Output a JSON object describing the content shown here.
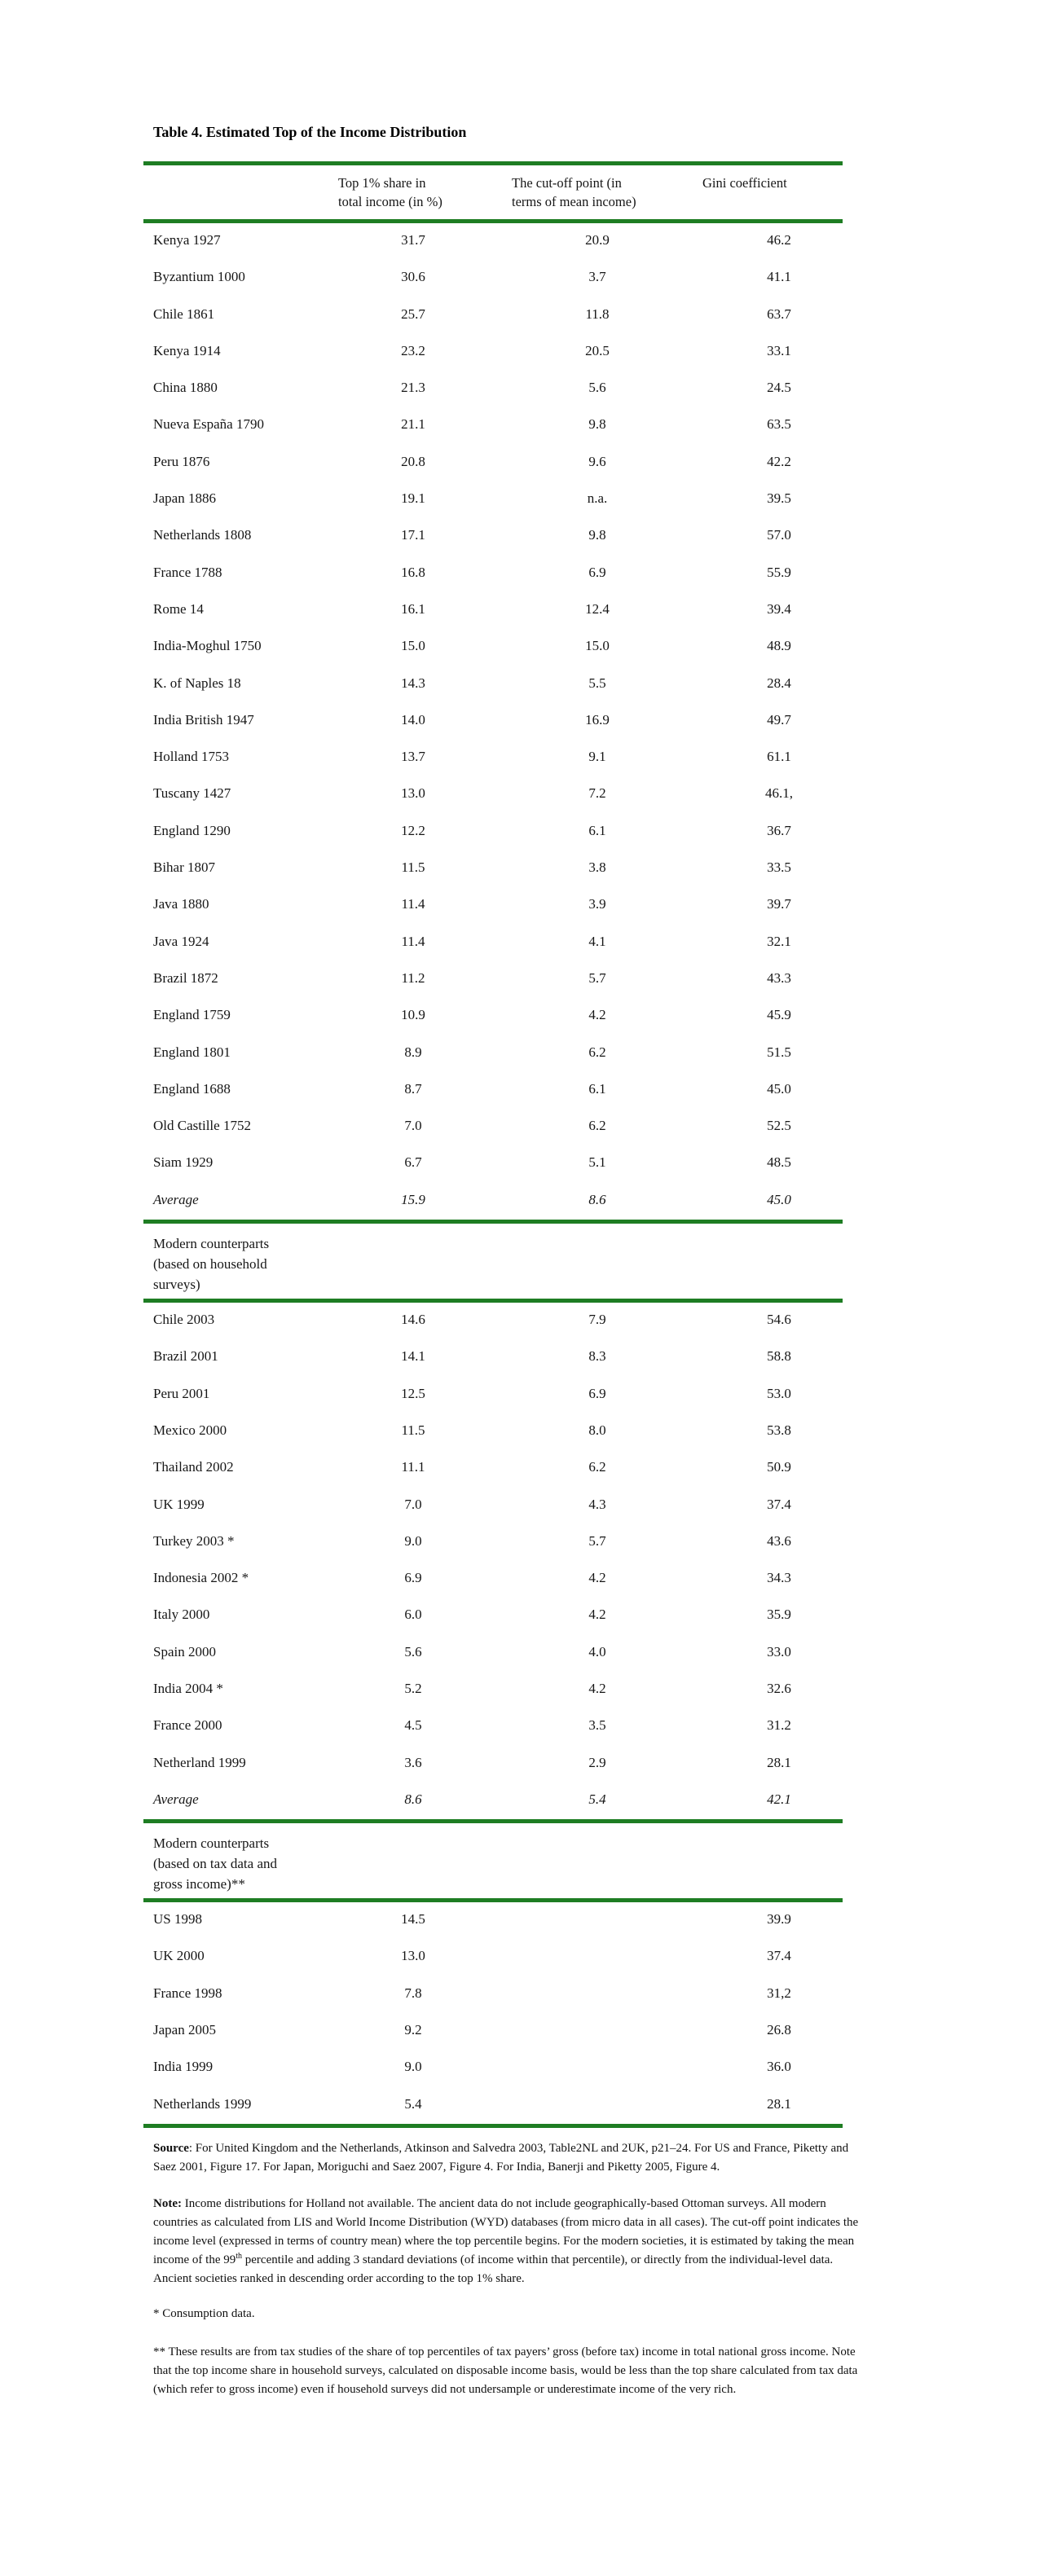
{
  "title": "Table 4. Estimated Top of the Income Distribution",
  "colors": {
    "rule_green": "#1e7d23",
    "text": "#161616"
  },
  "table": {
    "columns": [
      "",
      "Top 1% share in\ntotal income (in %)",
      "The cut-off point (in\nterms of mean income)",
      "Gini coefficient"
    ],
    "sections": [
      {
        "heading": "",
        "rows": [
          [
            "Kenya 1927",
            "31.7",
            "20.9",
            "46.2"
          ],
          [
            "Byzantium 1000",
            "30.6",
            "3.7",
            "41.1"
          ],
          [
            "Chile 1861",
            "25.7",
            "11.8",
            "63.7"
          ],
          [
            "Kenya 1914",
            "23.2",
            "20.5",
            "33.1"
          ],
          [
            "China 1880",
            "21.3",
            "5.6",
            "24.5"
          ],
          [
            "Nueva España 1790",
            "21.1",
            "9.8",
            "63.5"
          ],
          [
            "Peru 1876",
            "20.8",
            "9.6",
            "42.2"
          ],
          [
            "Japan 1886",
            "19.1",
            "n.a.",
            "39.5"
          ],
          [
            "Netherlands 1808",
            "17.1",
            "9.8",
            "57.0"
          ],
          [
            "France 1788",
            "16.8",
            "6.9",
            "55.9"
          ],
          [
            "Rome 14",
            "16.1",
            "12.4",
            "39.4"
          ],
          [
            "India-Moghul 1750",
            "15.0",
            "15.0",
            "48.9"
          ],
          [
            "K. of Naples 18",
            "14.3",
            "5.5",
            "28.4"
          ],
          [
            "India British 1947",
            "14.0",
            "16.9",
            "49.7"
          ],
          [
            "Holland 1753",
            "13.7",
            "9.1",
            "61.1"
          ],
          [
            "Tuscany 1427",
            "13.0",
            "7.2",
            "46.1,"
          ],
          [
            "England 1290",
            "12.2",
            "6.1",
            "36.7"
          ],
          [
            "Bihar 1807",
            "11.5",
            "3.8",
            "33.5"
          ],
          [
            "Java 1880",
            "11.4",
            "3.9",
            "39.7"
          ],
          [
            "Java 1924",
            "11.4",
            "4.1",
            "32.1"
          ],
          [
            "Brazil 1872",
            "11.2",
            "5.7",
            "43.3"
          ],
          [
            "England 1759",
            "10.9",
            "4.2",
            "45.9"
          ],
          [
            "England 1801",
            "8.9",
            "6.2",
            "51.5"
          ],
          [
            "England 1688",
            "8.7",
            "6.1",
            "45.0"
          ],
          [
            "Old Castille 1752",
            "7.0",
            "6.2",
            "52.5"
          ],
          [
            "Siam 1929",
            "6.7",
            "5.1",
            "48.5"
          ],
          [
            "Average",
            "15.9",
            "8.6",
            "45.0"
          ]
        ]
      },
      {
        "heading": "Modern counterparts\n(based on household\nsurveys)",
        "rows": [
          [
            "Chile 2003",
            "14.6",
            "7.9",
            "54.6"
          ],
          [
            "Brazil 2001",
            "14.1",
            "8.3",
            "58.8"
          ],
          [
            "Peru 2001",
            "12.5",
            "6.9",
            "53.0"
          ],
          [
            "Mexico 2000",
            "11.5",
            "8.0",
            "53.8"
          ],
          [
            "Thailand 2002",
            "11.1",
            "6.2",
            "50.9"
          ],
          [
            "UK 1999",
            "7.0",
            "4.3",
            "37.4"
          ],
          [
            "Turkey 2003 *",
            "9.0",
            "5.7",
            "43.6"
          ],
          [
            "Indonesia 2002 *",
            "6.9",
            "4.2",
            "34.3"
          ],
          [
            "Italy 2000",
            "6.0",
            "4.2",
            "35.9"
          ],
          [
            "Spain 2000",
            "5.6",
            "4.0",
            "33.0"
          ],
          [
            "India 2004 *",
            "5.2",
            "4.2",
            "32.6"
          ],
          [
            "France 2000",
            "4.5",
            "3.5",
            "31.2"
          ],
          [
            "Netherland 1999",
            "3.6",
            "2.9",
            "28.1"
          ],
          [
            "Average",
            "8.6",
            "5.4",
            "42.1"
          ]
        ]
      },
      {
        "heading": "Modern counterparts\n(based on tax data and\ngross income)**",
        "rows": [
          [
            "US 1998",
            "14.5",
            "",
            "39.9"
          ],
          [
            "UK 2000",
            "13.0",
            "",
            "37.4"
          ],
          [
            "France 1998",
            "7.8",
            "",
            "31,2"
          ],
          [
            "Japan 2005",
            "9.2",
            "",
            "26.8"
          ],
          [
            "India 1999",
            "9.0",
            "",
            "36.0"
          ],
          [
            "Netherlands 1999",
            "5.4",
            "",
            "28.1"
          ]
        ]
      }
    ]
  },
  "footnotes": {
    "source_label": "Source",
    "source_text": ": For United Kingdom and the Netherlands, Atkinson and Salvedra 2003, Table2NL and 2UK, p21–24. For US and France, Piketty and Saez 2001, Figure 17. For Japan, Moriguchi and Saez 2007, Figure 4. For India, Banerji and Piketty 2005, Figure 4.",
    "note_label": "Note:",
    "note_pre": " Income distributions for Holland not available. The ancient data do not include geographically-based Ottoman surveys. All modern countries as calculated from LIS and World Income Distribution (WYD) databases (from micro data in all cases). The cut-off point indicates the income level (expressed in terms of country mean) where the top percentile begins. For the modern societies, it is estimated by taking the mean income of the 99",
    "note_sup": "th",
    "note_post": " percentile and adding 3 standard deviations (of income within that percentile), or directly from the individual-level data. Ancient societies ranked in descending order according to the top 1% share.",
    "star": "*  Consumption data.",
    "double_star": "**  These results are from tax studies of the share of top percentiles of tax payers’ gross (before tax) income in total national gross income. Note that the top income share in household surveys, calculated on disposable income basis, would be less than the top share calculated from tax data (which refer to gross income) even if household surveys did not undersample or underestimate income of the very rich."
  }
}
